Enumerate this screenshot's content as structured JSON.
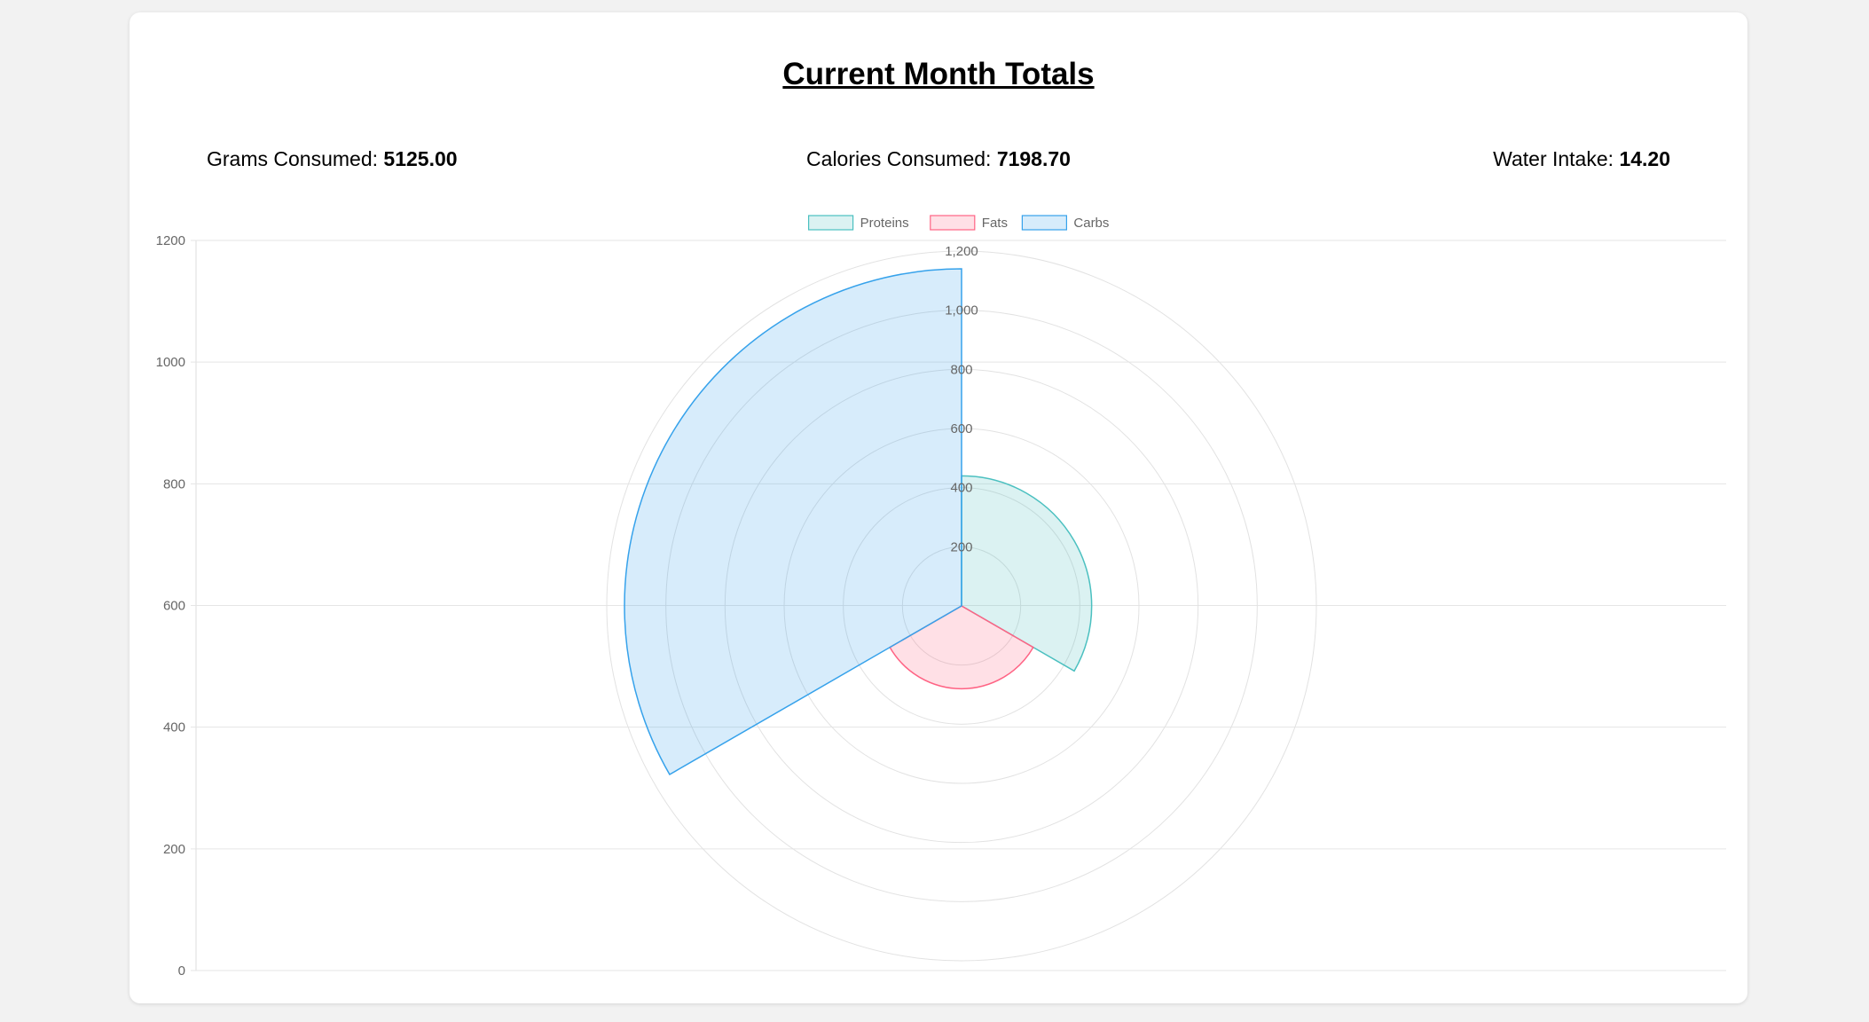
{
  "page": {
    "title": "Current Month Totals",
    "stats": [
      {
        "label": "Grams Consumed:",
        "value": "5125.00"
      },
      {
        "label": "Calories Consumed:",
        "value": "7198.70"
      },
      {
        "label": "Water Intake:",
        "value": "14.20"
      }
    ]
  },
  "chart_data": {
    "type": "polarArea",
    "title": "",
    "categories": [
      "Proteins",
      "Fats",
      "Carbs"
    ],
    "values": [
      440,
      280,
      1140
    ],
    "colors": {
      "Proteins": {
        "fill": "rgba(75,192,192,0.2)",
        "stroke": "#4bc0c0"
      },
      "Fats": {
        "fill": "rgba(255,99,132,0.2)",
        "stroke": "#ff6384"
      },
      "Carbs": {
        "fill": "rgba(54,162,235,0.2)",
        "stroke": "#36a2eb"
      }
    },
    "radial_scale": {
      "min": 0,
      "max": 1200,
      "ticks": [
        "200",
        "400",
        "600",
        "800",
        "1,000",
        "1,200"
      ]
    },
    "y_axis": {
      "min": 0,
      "max": 1200,
      "ticks": [
        "0",
        "200",
        "400",
        "600",
        "800",
        "1000",
        "1200"
      ]
    },
    "legend": {
      "position": "top",
      "entries": [
        "Proteins",
        "Fats",
        "Carbs"
      ]
    },
    "grid": true
  }
}
